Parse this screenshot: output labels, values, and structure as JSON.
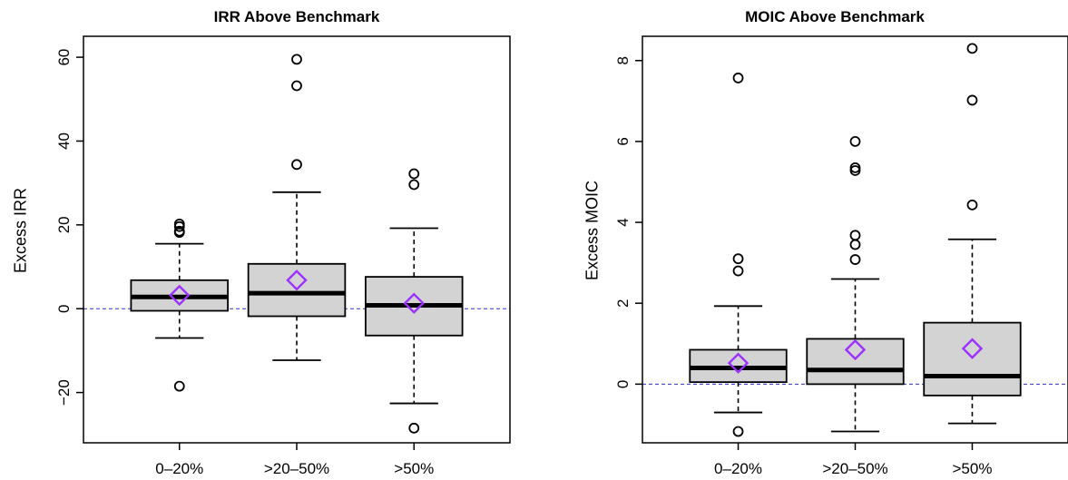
{
  "chart_data": [
    {
      "type": "boxplot",
      "title": "IRR Above Benchmark",
      "xlabel": "",
      "ylabel": "Excess IRR",
      "categories": [
        "0–20%",
        ">20–50%",
        ">50%"
      ],
      "yticks": [
        -20,
        0,
        20,
        40,
        60
      ],
      "ylim": [
        -32,
        65
      ],
      "reference_line": 0,
      "mean_color": "#9b30ff",
      "box_fill": "#d3d3d3",
      "boxes": [
        {
          "category": "0–20%",
          "whisker_low": -7,
          "q1": -0.5,
          "median": 2.8,
          "q3": 6.8,
          "whisker_high": 15.5,
          "mean": 3.2,
          "outliers": [
            20.2,
            19.6,
            18.5,
            18.2,
            -18.5
          ]
        },
        {
          "category": ">20–50%",
          "whisker_low": -12.3,
          "q1": -1.8,
          "median": 3.7,
          "q3": 10.7,
          "whisker_high": 27.8,
          "mean": 6.8,
          "outliers": [
            59.5,
            53.2,
            34.4
          ]
        },
        {
          "category": ">50%",
          "whisker_low": -22.6,
          "q1": -6.4,
          "median": 0.8,
          "q3": 7.6,
          "whisker_high": 19.2,
          "mean": 1.3,
          "outliers": [
            32.2,
            29.6,
            -28.5
          ]
        }
      ]
    },
    {
      "type": "boxplot",
      "title": "MOIC Above Benchmark",
      "xlabel": "",
      "ylabel": "Excess MOIC",
      "categories": [
        "0–20%",
        ">20–50%",
        ">50%"
      ],
      "yticks": [
        0,
        2,
        4,
        6,
        8
      ],
      "ylim": [
        -1.45,
        8.6
      ],
      "reference_line": 0,
      "mean_color": "#9b30ff",
      "box_fill": "#d3d3d3",
      "boxes": [
        {
          "category": "0–20%",
          "whisker_low": -0.7,
          "q1": 0.05,
          "median": 0.4,
          "q3": 0.85,
          "whisker_high": 1.93,
          "mean": 0.52,
          "outliers": [
            7.57,
            3.1,
            2.8,
            -1.17
          ]
        },
        {
          "category": ">20–50%",
          "whisker_low": -1.17,
          "q1": 0.0,
          "median": 0.35,
          "q3": 1.12,
          "whisker_high": 2.6,
          "mean": 0.85,
          "outliers": [
            6.0,
            5.35,
            5.28,
            3.68,
            3.45,
            3.08
          ]
        },
        {
          "category": ">50%",
          "whisker_low": -0.97,
          "q1": -0.28,
          "median": 0.2,
          "q3": 1.52,
          "whisker_high": 3.58,
          "mean": 0.88,
          "outliers": [
            8.3,
            7.02,
            4.43
          ]
        }
      ]
    }
  ]
}
